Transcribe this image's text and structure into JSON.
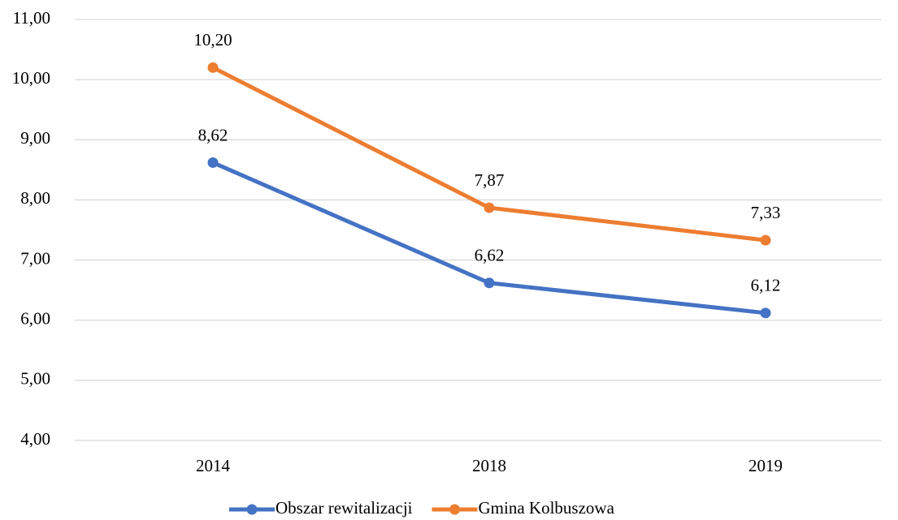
{
  "chart_data": {
    "type": "line",
    "categories": [
      "2014",
      "2018",
      "2019"
    ],
    "series": [
      {
        "name": "Obszar rewitalizacji",
        "color": "#4472c4",
        "values": [
          8.62,
          6.62,
          6.12
        ],
        "value_labels": [
          "8,62",
          "6,62",
          "6,12"
        ]
      },
      {
        "name": "Gmina Kolbuszowa",
        "color": "#ed7d31",
        "values": [
          10.2,
          7.87,
          7.33
        ],
        "value_labels": [
          "10,20",
          "7,87",
          "7,33"
        ]
      }
    ],
    "ylim": [
      4,
      11
    ],
    "yticks": [
      {
        "value": 4,
        "label": "4,00"
      },
      {
        "value": 5,
        "label": "5,00"
      },
      {
        "value": 6,
        "label": "6,00"
      },
      {
        "value": 7,
        "label": "7,00"
      },
      {
        "value": 8,
        "label": "8,00"
      },
      {
        "value": 9,
        "label": "9,00"
      },
      {
        "value": 10,
        "label": "10,00"
      },
      {
        "value": 11,
        "label": "11,00"
      }
    ],
    "grid": true,
    "legend": "bottom"
  }
}
